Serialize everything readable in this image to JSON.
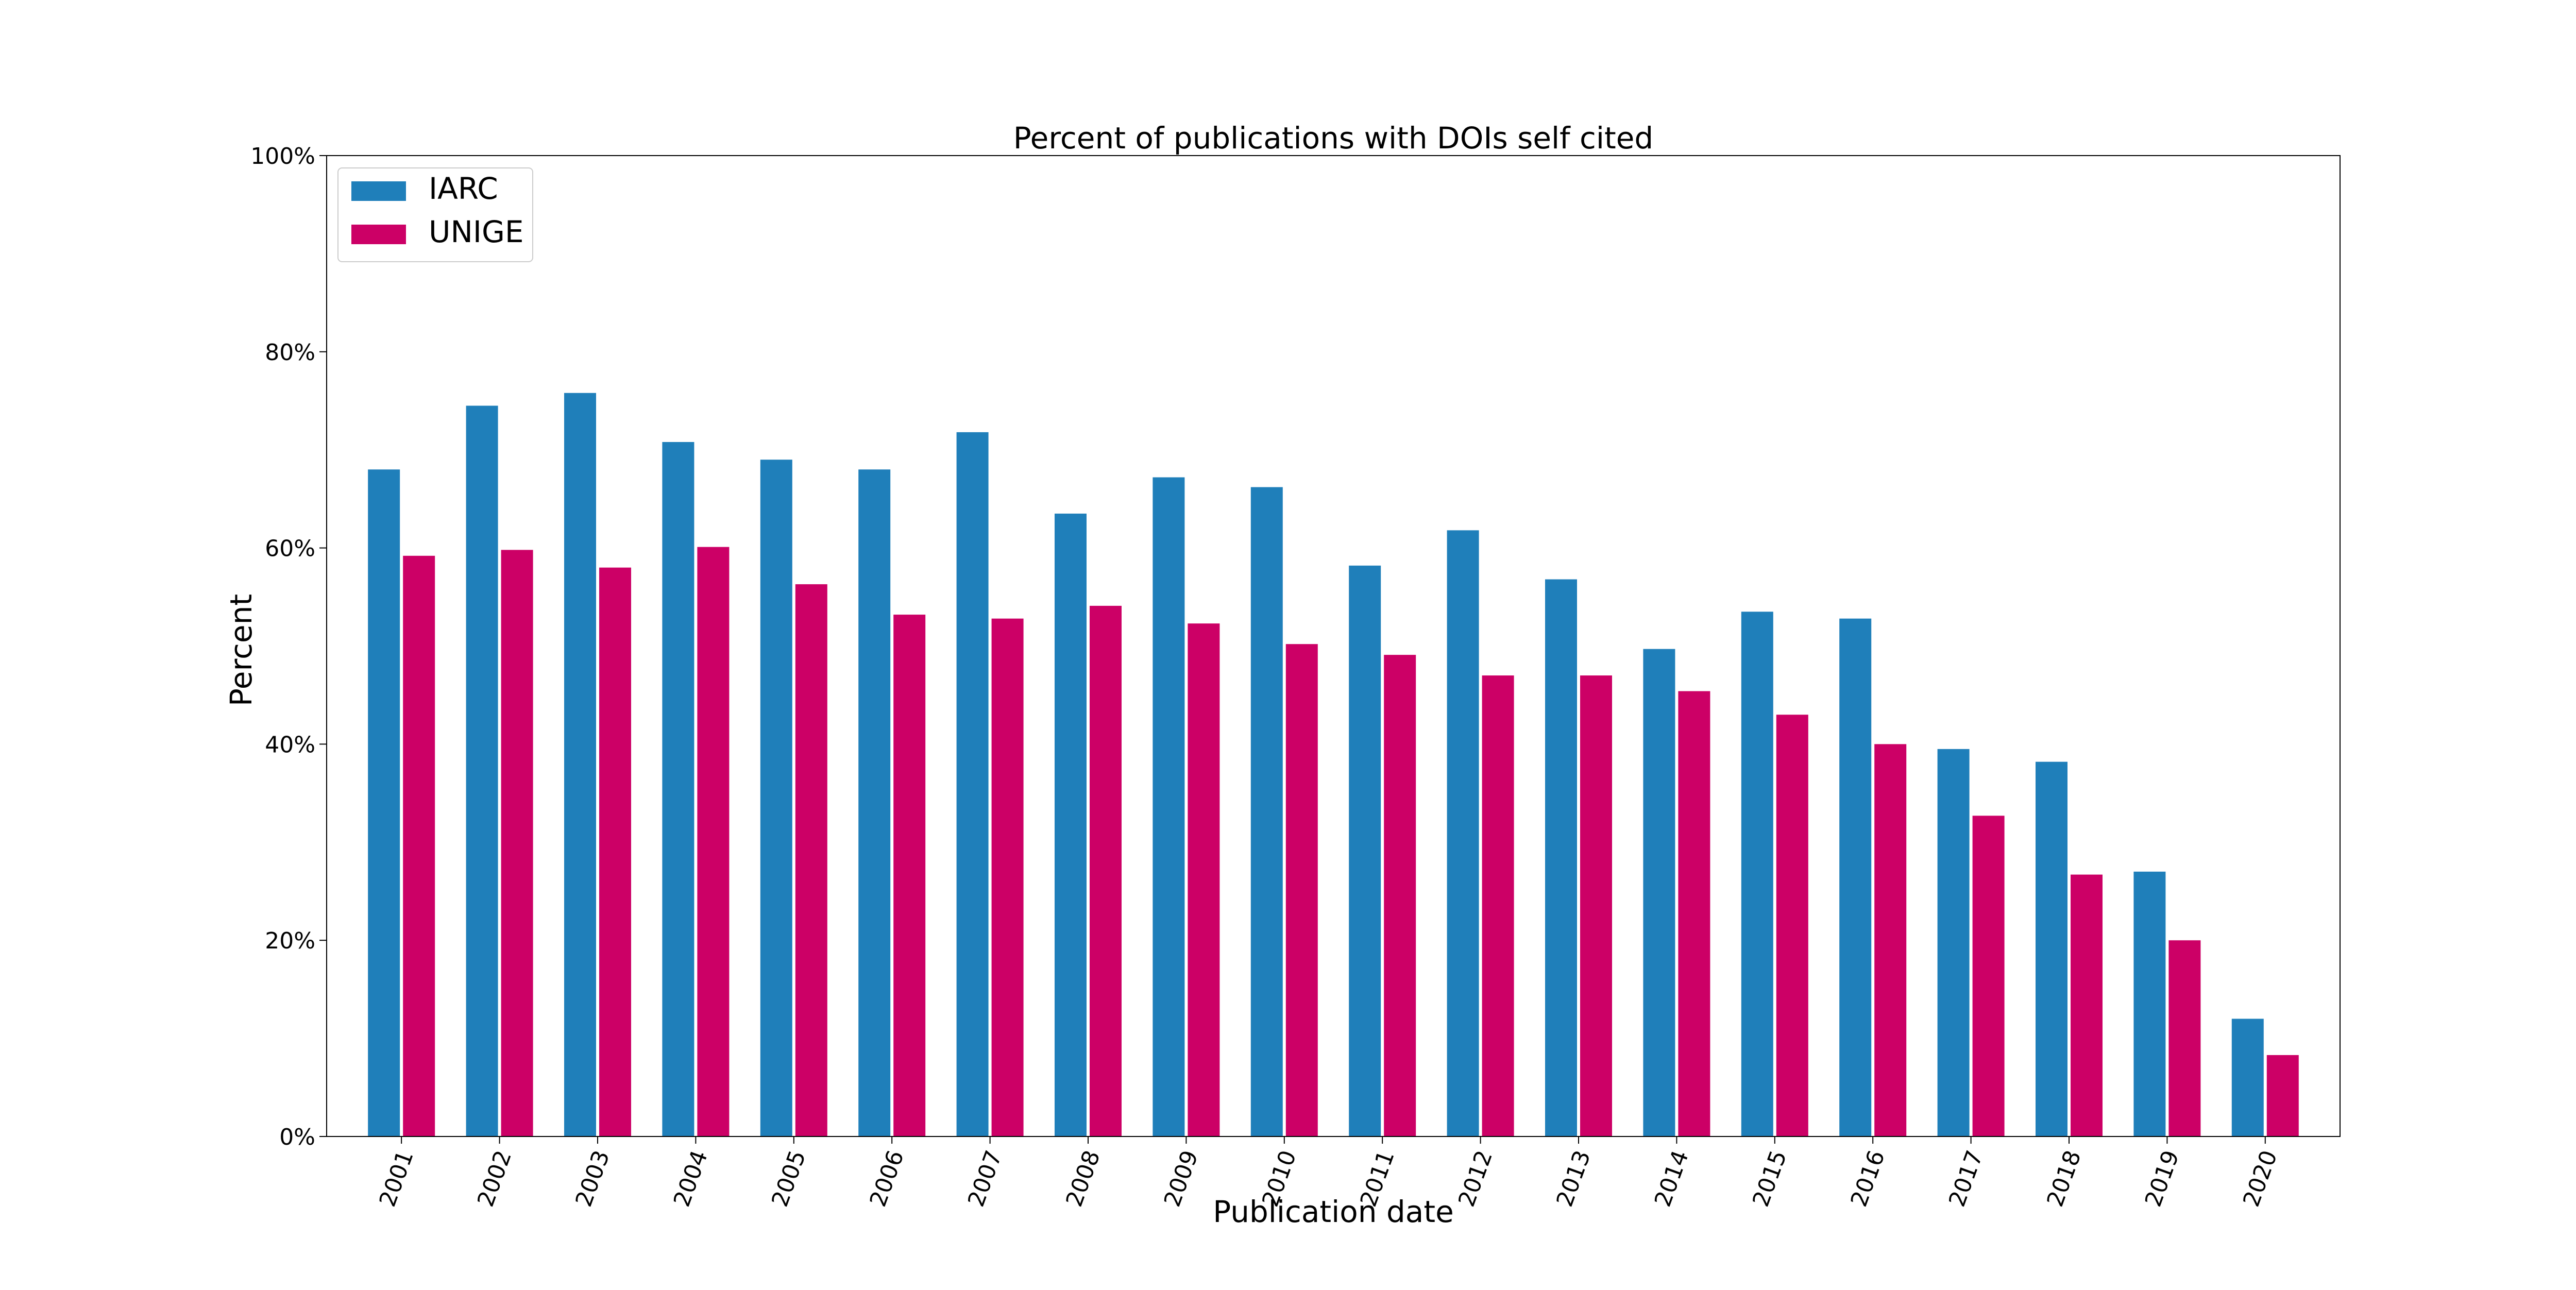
{
  "chart_data": {
    "type": "bar",
    "title": "Percent of publications with DOIs self cited",
    "xlabel": "Publication date",
    "ylabel": "Percent",
    "ylim": [
      0,
      100
    ],
    "yticks": [
      {
        "value": 0,
        "label": "0%"
      },
      {
        "value": 20,
        "label": "20%"
      },
      {
        "value": 40,
        "label": "40%"
      },
      {
        "value": 60,
        "label": "60%"
      },
      {
        "value": 80,
        "label": "80%"
      },
      {
        "value": 100,
        "label": "100%"
      }
    ],
    "grid": false,
    "legend_position": "top-left",
    "categories": [
      "2001",
      "2002",
      "2003",
      "2004",
      "2005",
      "2006",
      "2007",
      "2008",
      "2009",
      "2010",
      "2011",
      "2012",
      "2013",
      "2014",
      "2015",
      "2016",
      "2017",
      "2018",
      "2019",
      "2020"
    ],
    "series": [
      {
        "name": "IARC",
        "color": "#1f7fba",
        "values": [
          68,
          74.5,
          75.8,
          70.8,
          69,
          68,
          71.8,
          63.5,
          67.2,
          66.2,
          58.2,
          61.8,
          56.8,
          49.7,
          53.5,
          52.8,
          39.5,
          38.2,
          27,
          12
        ]
      },
      {
        "name": "UNIGE",
        "color": "#cc0066",
        "values": [
          59.2,
          59.8,
          58,
          60.1,
          56.3,
          53.2,
          52.8,
          54.1,
          52.3,
          50.2,
          49.1,
          47,
          47,
          45.4,
          43,
          40,
          32.7,
          26.7,
          20,
          8.3
        ]
      }
    ]
  }
}
